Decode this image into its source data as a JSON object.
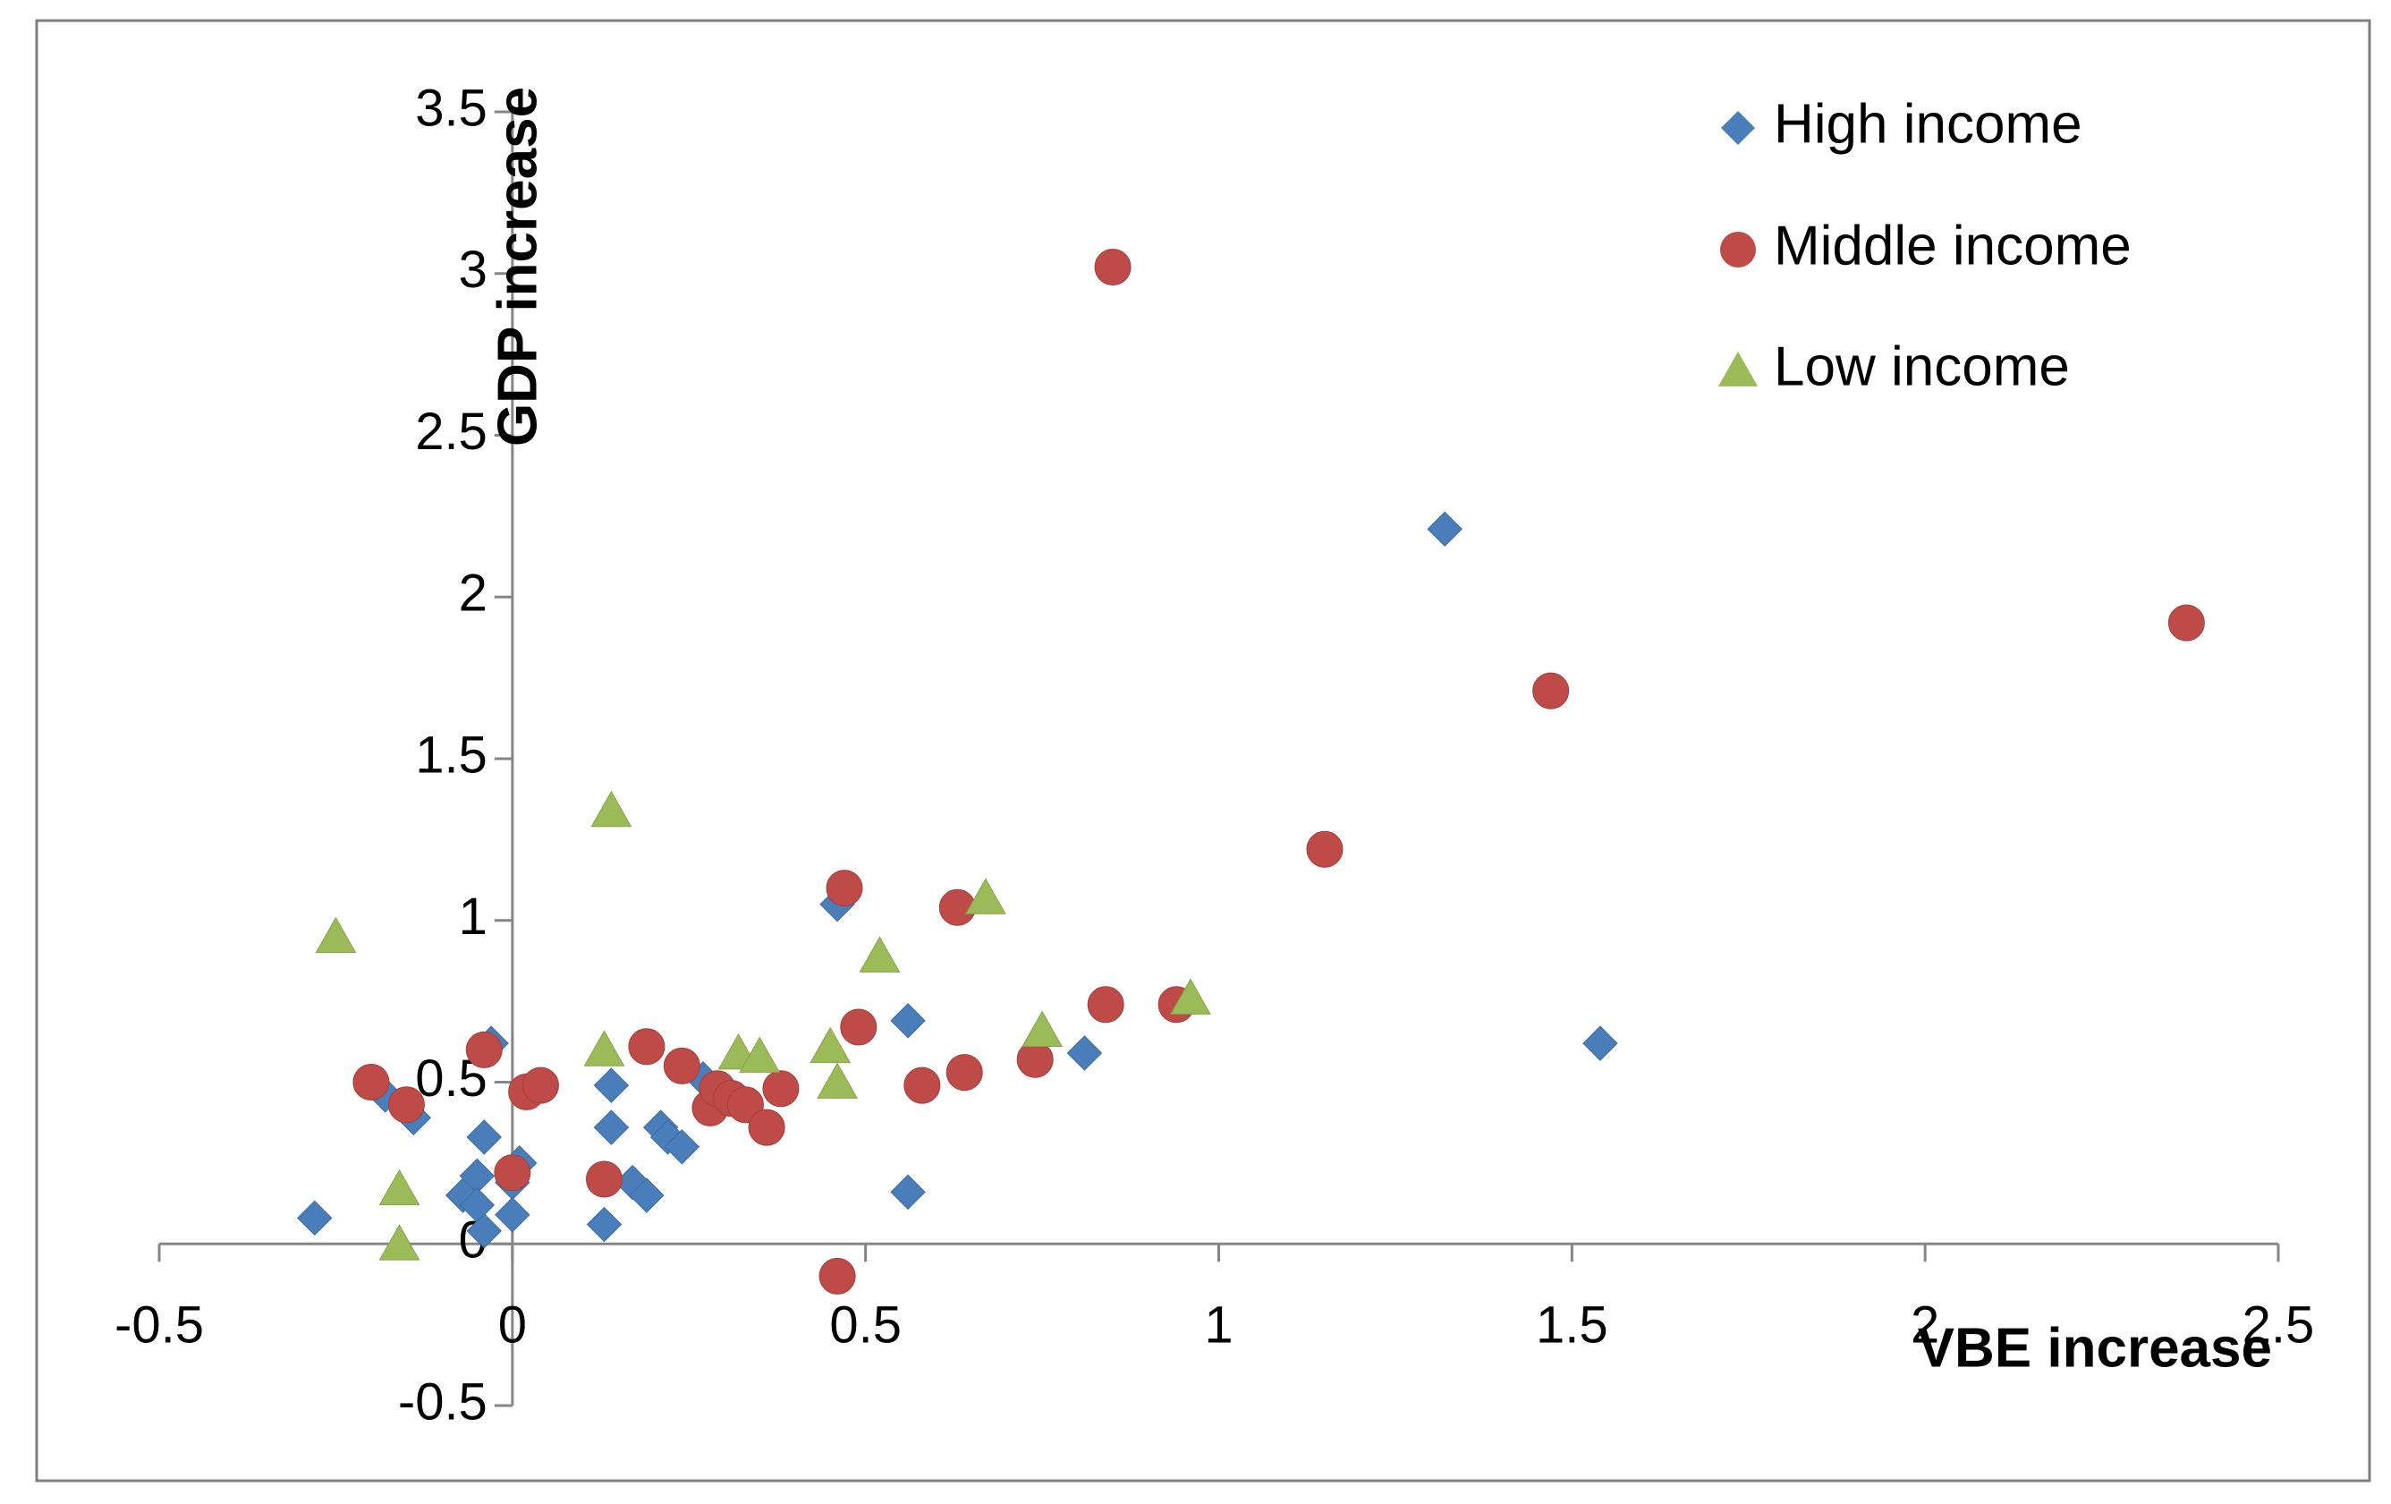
{
  "chart_data": {
    "type": "scatter",
    "title": "",
    "xlabel": "VBE increase",
    "ylabel": "GDP increase",
    "xlim": [
      -0.5,
      2.5
    ],
    "ylim": [
      -0.5,
      3.5
    ],
    "x_ticks": [
      -0.5,
      0,
      0.5,
      1,
      1.5,
      2,
      2.5
    ],
    "y_ticks": [
      -0.5,
      0,
      0.5,
      1,
      1.5,
      2,
      2.5,
      3,
      3.5
    ],
    "x_tick_labels": [
      "-0.5",
      "0",
      "0.5",
      "1",
      "1.5",
      "2",
      "2.5"
    ],
    "y_tick_labels": [
      "-0.5",
      "0",
      "0.5",
      "1",
      "1.5",
      "2",
      "2.5",
      "3",
      "3.5"
    ],
    "grid": false,
    "legend_position": "top-right",
    "series": [
      {
        "name": "High income",
        "marker": "diamond",
        "color": "#4a7ebb",
        "points": [
          [
            -0.28,
            0.08
          ],
          [
            -0.18,
            0.46
          ],
          [
            -0.14,
            0.39
          ],
          [
            -0.07,
            0.15
          ],
          [
            -0.05,
            0.21
          ],
          [
            -0.04,
            0.33
          ],
          [
            -0.03,
            0.62
          ],
          [
            -0.05,
            0.12
          ],
          [
            -0.04,
            0.04
          ],
          [
            0.01,
            0.25
          ],
          [
            0.0,
            0.19
          ],
          [
            0.0,
            0.09
          ],
          [
            0.13,
            0.06
          ],
          [
            0.14,
            0.49
          ],
          [
            0.14,
            0.36
          ],
          [
            0.17,
            0.19
          ],
          [
            0.19,
            0.15
          ],
          [
            0.21,
            0.36
          ],
          [
            0.22,
            0.33
          ],
          [
            0.24,
            0.3
          ],
          [
            0.27,
            0.51
          ],
          [
            0.46,
            1.05
          ],
          [
            0.56,
            0.69
          ],
          [
            0.56,
            0.16
          ],
          [
            0.81,
            0.59
          ],
          [
            1.32,
            2.21
          ],
          [
            1.54,
            0.62
          ]
        ]
      },
      {
        "name": "Middle income",
        "marker": "circle",
        "color": "#be4b48",
        "points": [
          [
            -0.2,
            0.5
          ],
          [
            -0.15,
            0.43
          ],
          [
            -0.04,
            0.6
          ],
          [
            0.02,
            0.47
          ],
          [
            0.04,
            0.49
          ],
          [
            0.0,
            0.22
          ],
          [
            0.13,
            0.2
          ],
          [
            0.19,
            0.61
          ],
          [
            0.24,
            0.55
          ],
          [
            0.28,
            0.42
          ],
          [
            0.29,
            0.48
          ],
          [
            0.31,
            0.45
          ],
          [
            0.33,
            0.43
          ],
          [
            0.36,
            0.36
          ],
          [
            0.38,
            0.48
          ],
          [
            0.47,
            1.1
          ],
          [
            0.49,
            0.67
          ],
          [
            0.58,
            0.49
          ],
          [
            0.63,
            1.04
          ],
          [
            0.64,
            0.53
          ],
          [
            0.74,
            0.57
          ],
          [
            0.84,
            0.74
          ],
          [
            0.85,
            3.02
          ],
          [
            0.94,
            0.74
          ],
          [
            1.15,
            1.22
          ],
          [
            1.47,
            1.71
          ],
          [
            2.37,
            1.92
          ],
          [
            0.46,
            -0.1
          ]
        ]
      },
      {
        "name": "Low income",
        "marker": "triangle",
        "color": "#9bbb59",
        "points": [
          [
            -0.25,
            0.95
          ],
          [
            -0.16,
            0.17
          ],
          [
            -0.16,
            0.0
          ],
          [
            0.13,
            0.6
          ],
          [
            0.14,
            1.34
          ],
          [
            0.32,
            0.59
          ],
          [
            0.35,
            0.58
          ],
          [
            0.45,
            0.61
          ],
          [
            0.46,
            0.5
          ],
          [
            0.52,
            0.89
          ],
          [
            0.67,
            1.07
          ],
          [
            0.75,
            0.66
          ],
          [
            0.96,
            0.76
          ]
        ]
      }
    ]
  }
}
